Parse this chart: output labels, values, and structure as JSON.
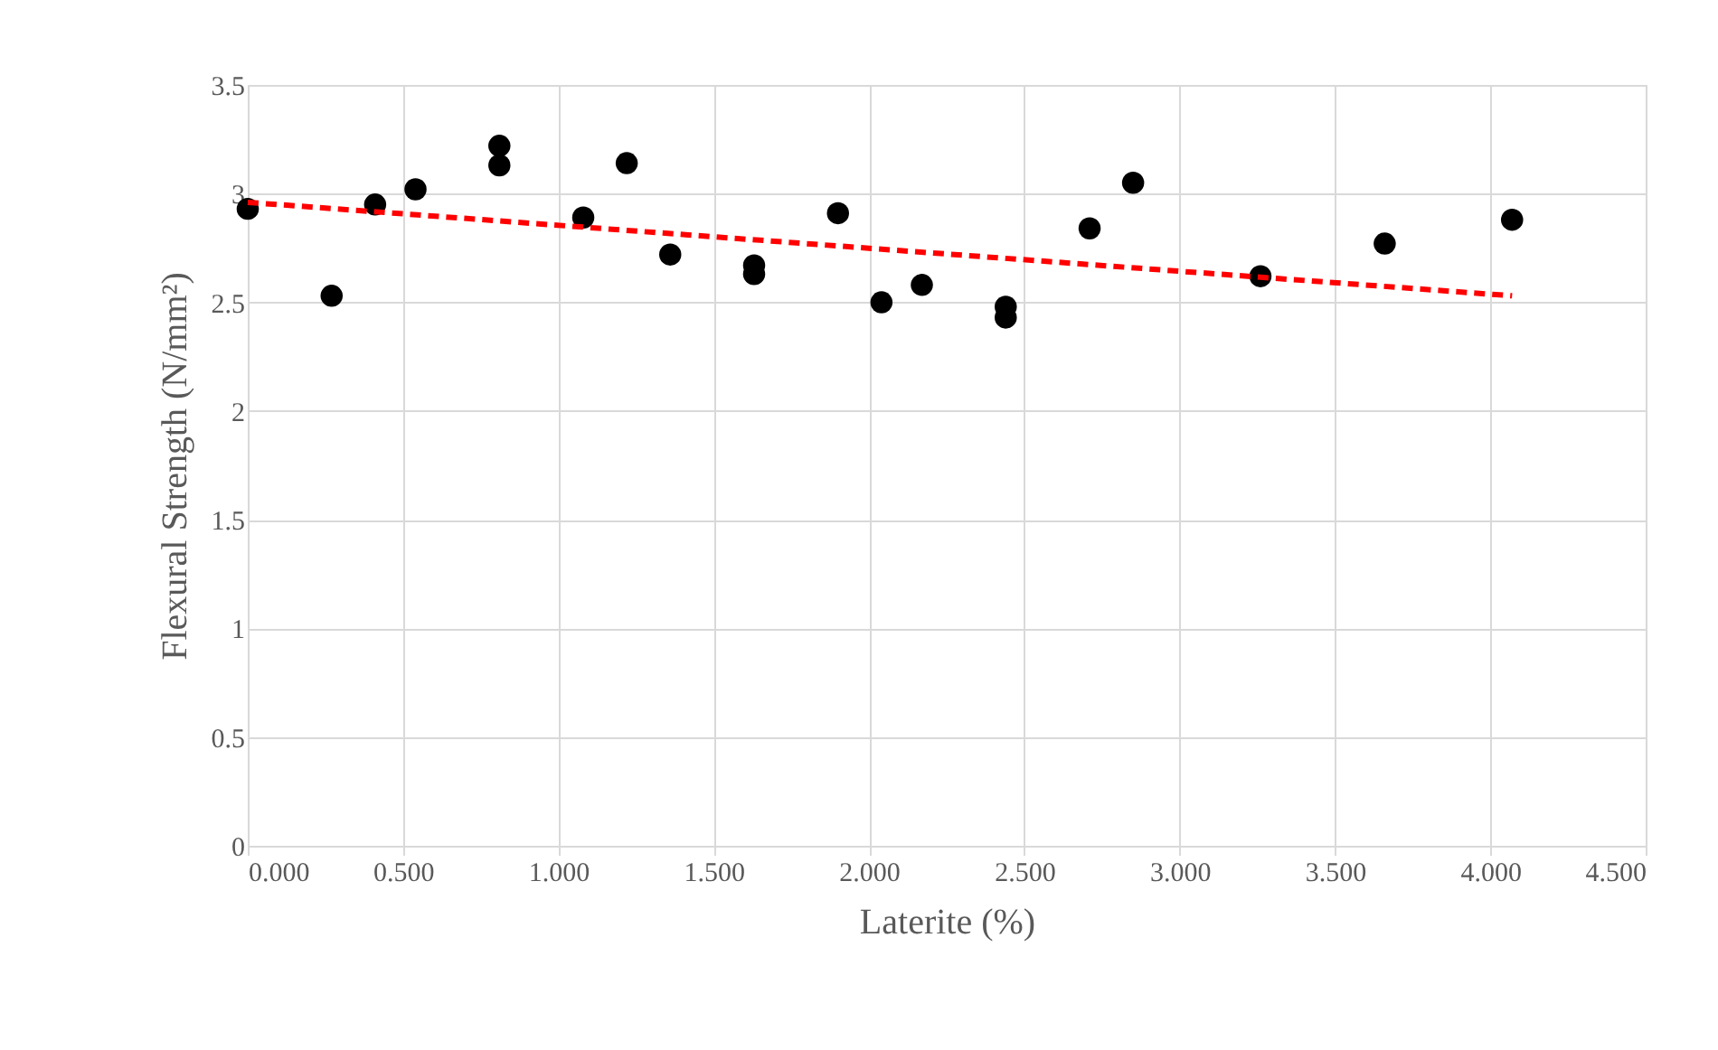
{
  "chart_data": {
    "type": "scatter",
    "xlabel": "Laterite (%)",
    "ylabel": "Flexural Strength (N/mm²)",
    "xlim": [
      0,
      4.5
    ],
    "xticks": [
      {
        "value": 0,
        "label": "0.000"
      },
      {
        "value": 0.5,
        "label": "0.500"
      },
      {
        "value": 1,
        "label": "1.000"
      },
      {
        "value": 1.5,
        "label": "1.500"
      },
      {
        "value": 2,
        "label": "2.000"
      },
      {
        "value": 2.5,
        "label": "2.500"
      },
      {
        "value": 3,
        "label": "3.000"
      },
      {
        "value": 3.5,
        "label": "3.500"
      },
      {
        "value": 4,
        "label": "4.000"
      },
      {
        "value": 4.5,
        "label": "4.500"
      }
    ],
    "ylim": [
      0,
      3.5
    ],
    "yticks": [
      {
        "value": 0,
        "label": "0"
      },
      0.5,
      {
        "value": 1,
        "label": "1"
      },
      1.5,
      {
        "value": 2,
        "label": "2"
      },
      2.5,
      {
        "value": 3,
        "label": "3"
      },
      3.5
    ],
    "grid": true,
    "legend": false,
    "series": [
      {
        "marker": "circle",
        "color": "#000000",
        "x": [
          0,
          0.27,
          0.41,
          0.54,
          0.81,
          0.81,
          1.08,
          1.22,
          1.36,
          1.63,
          1.63,
          1.9,
          2.04,
          2.17,
          2.44,
          2.44,
          2.71,
          2.85,
          3.26,
          3.66,
          4.07
        ],
        "values": [
          2.93,
          2.53,
          2.95,
          3.02,
          3.22,
          3.13,
          2.89,
          3.14,
          2.72,
          2.67,
          2.63,
          2.91,
          2.5,
          2.58,
          2.48,
          2.43,
          2.84,
          3.05,
          2.62,
          2.77,
          2.88
        ]
      },
      {
        "type": "line",
        "line_style": "dashed",
        "color": "#ff0000",
        "x": [
          0,
          4.07
        ],
        "values": [
          2.96,
          2.53
        ]
      }
    ]
  }
}
